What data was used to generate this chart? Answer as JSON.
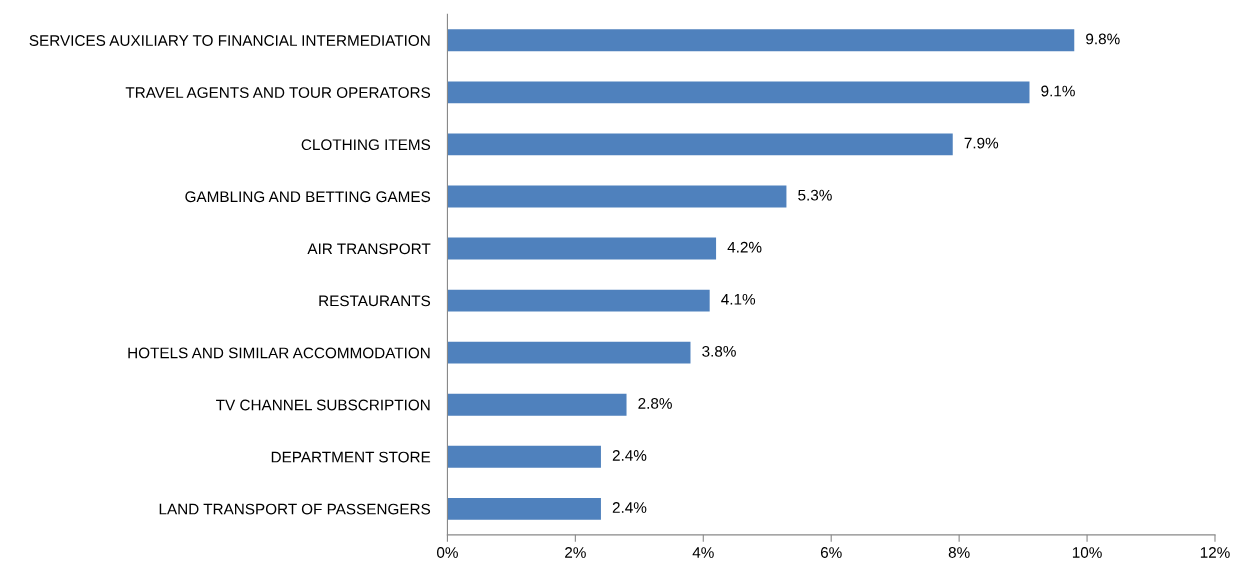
{
  "chart_data": {
    "type": "bar",
    "orientation": "horizontal",
    "categories": [
      "SERVICES AUXILIARY TO FINANCIAL INTERMEDIATION",
      "TRAVEL AGENTS AND TOUR OPERATORS",
      "CLOTHING ITEMS",
      "GAMBLING AND BETTING GAMES",
      "AIR TRANSPORT",
      "RESTAURANTS",
      "HOTELS AND SIMILAR ACCOMMODATION",
      "TV CHANNEL SUBSCRIPTION",
      "DEPARTMENT STORE",
      "LAND TRANSPORT OF PASSENGERS"
    ],
    "values": [
      9.8,
      9.1,
      7.9,
      5.3,
      4.2,
      4.1,
      3.8,
      2.8,
      2.4,
      2.4
    ],
    "value_labels": [
      "9.8%",
      "9.1%",
      "7.9%",
      "5.3%",
      "4.2%",
      "4.1%",
      "3.8%",
      "2.8%",
      "2.4%",
      "2.4%"
    ],
    "color": "#4f81bd",
    "xlim": [
      0,
      12
    ],
    "xticks": [
      {
        "value": 0,
        "label": "0%"
      },
      {
        "value": 2,
        "label": "2%"
      },
      {
        "value": 4,
        "label": "4%"
      },
      {
        "value": 6,
        "label": "6%"
      },
      {
        "value": 8,
        "label": "8%"
      },
      {
        "value": 10,
        "label": "10%"
      },
      {
        "value": 12,
        "label": "12%"
      }
    ],
    "grid": false,
    "legend": false
  }
}
